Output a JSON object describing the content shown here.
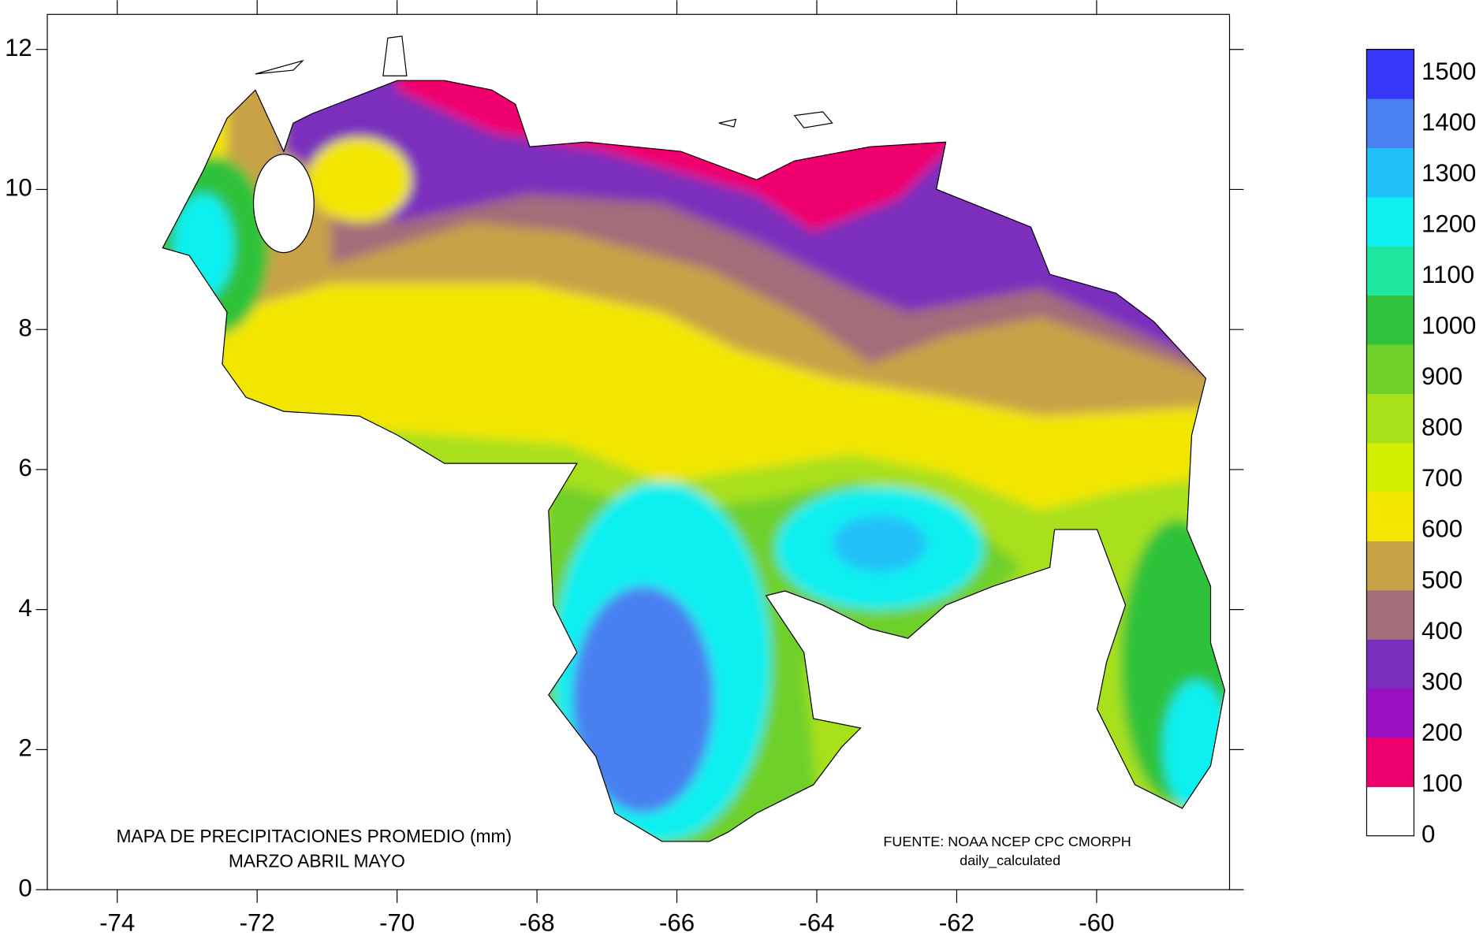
{
  "map": {
    "title": "MAPA DE PRECIPITACIONES PROMEDIO (mm)",
    "subtitle": "MARZO ABRIL MAYO",
    "source": "FUENTE: NOAA NCEP CPC CMORPH",
    "source_note": "daily_calculated",
    "xlim": [
      -75,
      -58.1
    ],
    "ylim": [
      0,
      12.5
    ],
    "xticks": [
      -74,
      -72,
      -70,
      -68,
      -66,
      -64,
      -62,
      -60
    ],
    "yticks": [
      0,
      2,
      4,
      6,
      8,
      10,
      12
    ],
    "colorbar": {
      "levels": [
        0,
        100,
        200,
        300,
        400,
        500,
        600,
        700,
        800,
        900,
        1000,
        1100,
        1200,
        1300,
        1400,
        1500
      ],
      "colors": [
        "#ffffff",
        "#f0006e",
        "#9a10c0",
        "#7b2dbd",
        "#a56c7a",
        "#c9a246",
        "#f2e600",
        "#d4f000",
        "#a8e01a",
        "#6fd02a",
        "#2fc23a",
        "#1ee8a0",
        "#10f0f0",
        "#20c0f8",
        "#4a80f0",
        "#3838f8"
      ]
    }
  }
}
